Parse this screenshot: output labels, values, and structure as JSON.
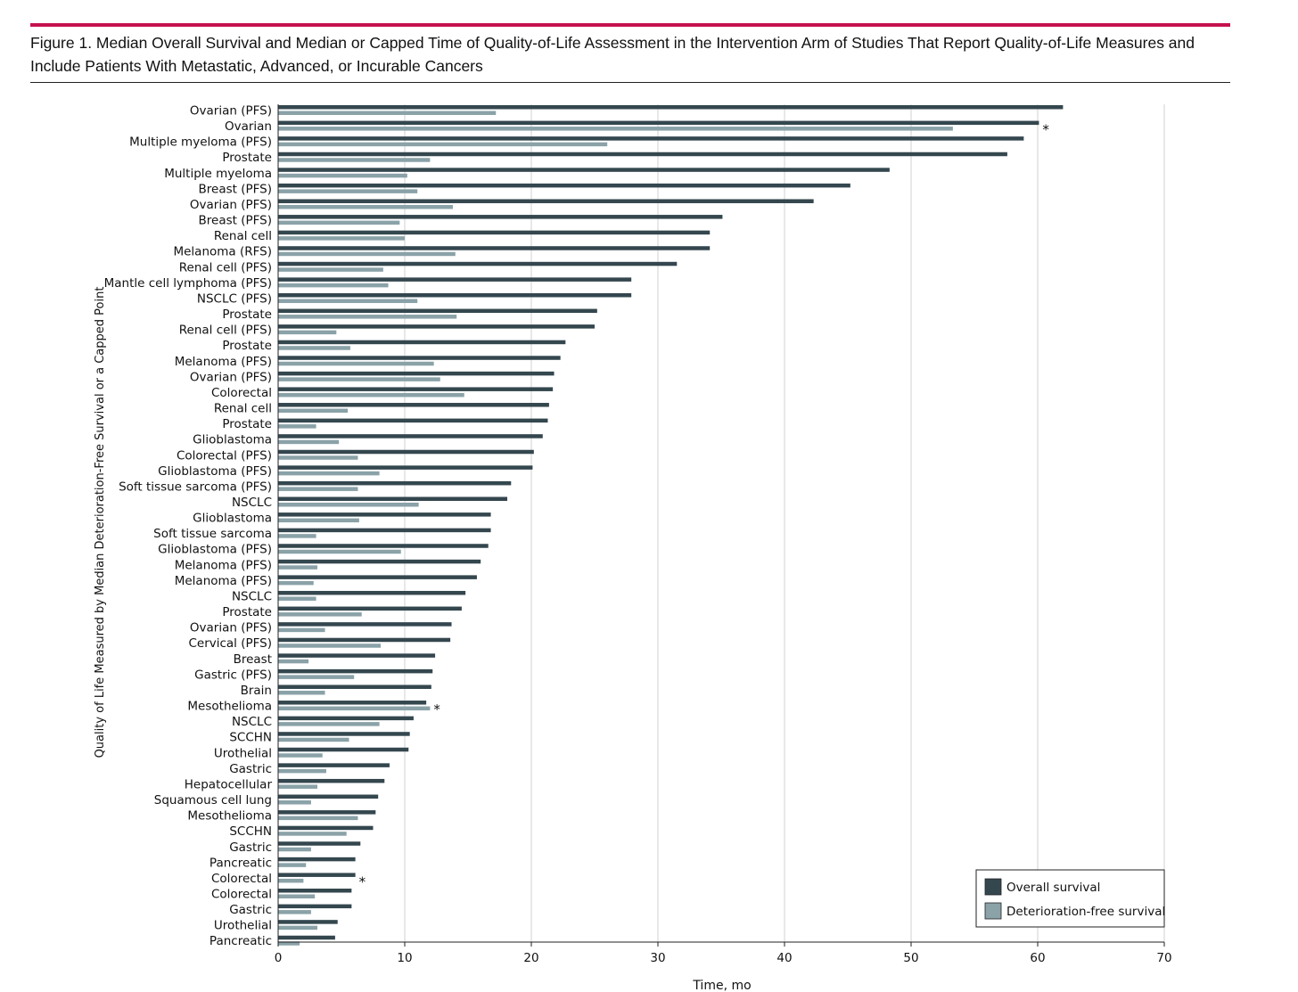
{
  "figure": {
    "title": "Figure 1. Median Overall Survival and Median or Capped Time of Quality-of-Life Assessment in the Intervention Arm of Studies That Report Quality-of-Life Measures and Include Patients With Metastatic, Advanced, or Incurable Cancers",
    "accent_color": "#c5124f"
  },
  "chart_data": {
    "type": "bar",
    "orientation": "horizontal",
    "xlabel": "Time, mo",
    "ylabel": "Quality of Life Measured by Median Deterioration-Free Survival or a Capped Point",
    "xlim": [
      0,
      70
    ],
    "xticks": [
      0,
      10,
      20,
      30,
      40,
      50,
      60,
      70
    ],
    "grid": "vertical",
    "legend_position": "bottom-right",
    "categories": [
      "Ovarian (PFS)",
      "Ovarian",
      "Multiple myeloma (PFS)",
      "Prostate",
      "Multiple myeloma",
      "Breast (PFS)",
      "Ovarian (PFS)",
      "Breast (PFS)",
      "Renal cell",
      "Melanoma (RFS)",
      "Renal cell (PFS)",
      "Mantle cell lymphoma (PFS)",
      "NSCLC (PFS)",
      "Prostate",
      "Renal cell (PFS)",
      "Prostate",
      "Melanoma (PFS)",
      "Ovarian (PFS)",
      "Colorectal",
      "Renal cell",
      "Prostate",
      "Glioblastoma",
      "Colorectal (PFS)",
      "Glioblastoma (PFS)",
      "Soft tissue sarcoma (PFS)",
      "NSCLC",
      "Glioblastoma",
      "Soft tissue sarcoma",
      "Glioblastoma (PFS)",
      "Melanoma (PFS)",
      "Melanoma (PFS)",
      "NSCLC",
      "Prostate",
      "Ovarian (PFS)",
      "Cervical (PFS)",
      "Breast",
      "Gastric (PFS)",
      "Brain",
      "Mesothelioma",
      "NSCLC",
      "SCCHN",
      "Urothelial",
      "Gastric",
      "Hepatocellular",
      "Squamous cell lung",
      "Mesothelioma",
      "SCCHN",
      "Gastric",
      "Pancreatic",
      "Colorectal",
      "Colorectal",
      "Gastric",
      "Urothelial",
      "Pancreatic"
    ],
    "series": [
      {
        "name": "Overall survival",
        "color": "#34474f",
        "values": [
          62.0,
          60.1,
          58.9,
          57.6,
          48.3,
          45.2,
          42.3,
          35.1,
          34.1,
          34.1,
          31.5,
          27.9,
          27.9,
          25.2,
          25.0,
          22.7,
          22.3,
          21.8,
          21.7,
          21.4,
          21.3,
          20.9,
          20.2,
          20.1,
          18.4,
          18.1,
          16.8,
          16.8,
          16.6,
          16.0,
          15.7,
          14.8,
          14.5,
          13.7,
          13.6,
          12.4,
          12.2,
          12.1,
          11.7,
          10.7,
          10.4,
          10.3,
          8.8,
          8.4,
          7.9,
          7.7,
          7.5,
          6.5,
          6.1,
          6.1,
          5.8,
          5.8,
          4.7,
          4.5
        ]
      },
      {
        "name": "Deterioration-free survival",
        "color": "#8aa2a8",
        "values": [
          17.2,
          53.3,
          26.0,
          12.0,
          10.2,
          11.0,
          13.8,
          9.6,
          10.0,
          14.0,
          8.3,
          8.7,
          11.0,
          14.1,
          4.6,
          5.7,
          12.3,
          12.8,
          14.7,
          5.5,
          3.0,
          4.8,
          6.3,
          8.0,
          6.3,
          11.1,
          6.4,
          3.0,
          9.7,
          3.1,
          2.8,
          3.0,
          6.6,
          3.7,
          8.1,
          2.4,
          6.0,
          3.7,
          12.0,
          8.0,
          5.6,
          3.5,
          3.8,
          3.1,
          2.6,
          6.3,
          5.4,
          2.6,
          2.2,
          2.0,
          2.9,
          2.6,
          3.1,
          1.7
        ]
      }
    ],
    "annotations": [
      {
        "row": 1,
        "text": "*"
      },
      {
        "row": 38,
        "text": "*"
      },
      {
        "row": 49,
        "text": "*"
      }
    ]
  }
}
